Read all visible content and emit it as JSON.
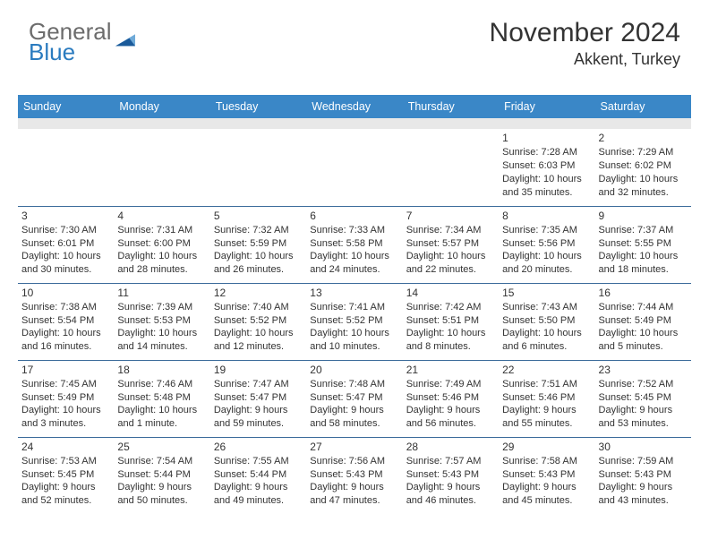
{
  "logo": {
    "text1": "General",
    "text2": "Blue"
  },
  "header": {
    "month": "November 2024",
    "location": "Akkent, Turkey"
  },
  "colors": {
    "header_bg": "#3a87c7",
    "header_fg": "#ffffff",
    "row_border": "#3a6a9a",
    "blank_row": "#e8e8e8",
    "text": "#333333",
    "logo_gray": "#6c6c6c",
    "logo_blue": "#2a7bbf",
    "tri_light": "#6faad8",
    "tri_dark": "#1a5a9a"
  },
  "weekdays": [
    "Sunday",
    "Monday",
    "Tuesday",
    "Wednesday",
    "Thursday",
    "Friday",
    "Saturday"
  ],
  "days": [
    {
      "n": 1,
      "sr": "7:28 AM",
      "ss": "6:03 PM",
      "dl": "10 hours and 35 minutes."
    },
    {
      "n": 2,
      "sr": "7:29 AM",
      "ss": "6:02 PM",
      "dl": "10 hours and 32 minutes."
    },
    {
      "n": 3,
      "sr": "7:30 AM",
      "ss": "6:01 PM",
      "dl": "10 hours and 30 minutes."
    },
    {
      "n": 4,
      "sr": "7:31 AM",
      "ss": "6:00 PM",
      "dl": "10 hours and 28 minutes."
    },
    {
      "n": 5,
      "sr": "7:32 AM",
      "ss": "5:59 PM",
      "dl": "10 hours and 26 minutes."
    },
    {
      "n": 6,
      "sr": "7:33 AM",
      "ss": "5:58 PM",
      "dl": "10 hours and 24 minutes."
    },
    {
      "n": 7,
      "sr": "7:34 AM",
      "ss": "5:57 PM",
      "dl": "10 hours and 22 minutes."
    },
    {
      "n": 8,
      "sr": "7:35 AM",
      "ss": "5:56 PM",
      "dl": "10 hours and 20 minutes."
    },
    {
      "n": 9,
      "sr": "7:37 AM",
      "ss": "5:55 PM",
      "dl": "10 hours and 18 minutes."
    },
    {
      "n": 10,
      "sr": "7:38 AM",
      "ss": "5:54 PM",
      "dl": "10 hours and 16 minutes."
    },
    {
      "n": 11,
      "sr": "7:39 AM",
      "ss": "5:53 PM",
      "dl": "10 hours and 14 minutes."
    },
    {
      "n": 12,
      "sr": "7:40 AM",
      "ss": "5:52 PM",
      "dl": "10 hours and 12 minutes."
    },
    {
      "n": 13,
      "sr": "7:41 AM",
      "ss": "5:52 PM",
      "dl": "10 hours and 10 minutes."
    },
    {
      "n": 14,
      "sr": "7:42 AM",
      "ss": "5:51 PM",
      "dl": "10 hours and 8 minutes."
    },
    {
      "n": 15,
      "sr": "7:43 AM",
      "ss": "5:50 PM",
      "dl": "10 hours and 6 minutes."
    },
    {
      "n": 16,
      "sr": "7:44 AM",
      "ss": "5:49 PM",
      "dl": "10 hours and 5 minutes."
    },
    {
      "n": 17,
      "sr": "7:45 AM",
      "ss": "5:49 PM",
      "dl": "10 hours and 3 minutes."
    },
    {
      "n": 18,
      "sr": "7:46 AM",
      "ss": "5:48 PM",
      "dl": "10 hours and 1 minute."
    },
    {
      "n": 19,
      "sr": "7:47 AM",
      "ss": "5:47 PM",
      "dl": "9 hours and 59 minutes."
    },
    {
      "n": 20,
      "sr": "7:48 AM",
      "ss": "5:47 PM",
      "dl": "9 hours and 58 minutes."
    },
    {
      "n": 21,
      "sr": "7:49 AM",
      "ss": "5:46 PM",
      "dl": "9 hours and 56 minutes."
    },
    {
      "n": 22,
      "sr": "7:51 AM",
      "ss": "5:46 PM",
      "dl": "9 hours and 55 minutes."
    },
    {
      "n": 23,
      "sr": "7:52 AM",
      "ss": "5:45 PM",
      "dl": "9 hours and 53 minutes."
    },
    {
      "n": 24,
      "sr": "7:53 AM",
      "ss": "5:45 PM",
      "dl": "9 hours and 52 minutes."
    },
    {
      "n": 25,
      "sr": "7:54 AM",
      "ss": "5:44 PM",
      "dl": "9 hours and 50 minutes."
    },
    {
      "n": 26,
      "sr": "7:55 AM",
      "ss": "5:44 PM",
      "dl": "9 hours and 49 minutes."
    },
    {
      "n": 27,
      "sr": "7:56 AM",
      "ss": "5:43 PM",
      "dl": "9 hours and 47 minutes."
    },
    {
      "n": 28,
      "sr": "7:57 AM",
      "ss": "5:43 PM",
      "dl": "9 hours and 46 minutes."
    },
    {
      "n": 29,
      "sr": "7:58 AM",
      "ss": "5:43 PM",
      "dl": "9 hours and 45 minutes."
    },
    {
      "n": 30,
      "sr": "7:59 AM",
      "ss": "5:43 PM",
      "dl": "9 hours and 43 minutes."
    }
  ],
  "labels": {
    "sunrise": "Sunrise:",
    "sunset": "Sunset:",
    "daylight": "Daylight:"
  },
  "layout": {
    "first_weekday_index": 5,
    "cols": 7
  }
}
